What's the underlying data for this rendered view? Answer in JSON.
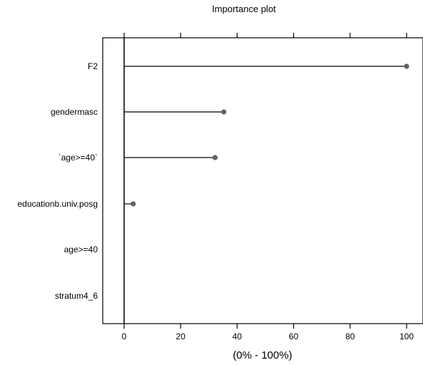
{
  "chart_data": {
    "type": "lollipop",
    "title": "Importance plot",
    "xlabel": "(0% - 100%)",
    "xlim": [
      -7,
      106
    ],
    "x_ticks": [
      0,
      20,
      40,
      60,
      80,
      100
    ],
    "categories": [
      "F2",
      "gendermasc",
      "`age>=40`",
      "educationb.univ.posg",
      "age>=40",
      "stratum4_6"
    ],
    "values": [
      100,
      35.3,
      32.2,
      3.2,
      null,
      null
    ],
    "reference_line": 0,
    "colors": {
      "point": "#606060",
      "stem": "#000000",
      "axis": "#000000"
    }
  }
}
